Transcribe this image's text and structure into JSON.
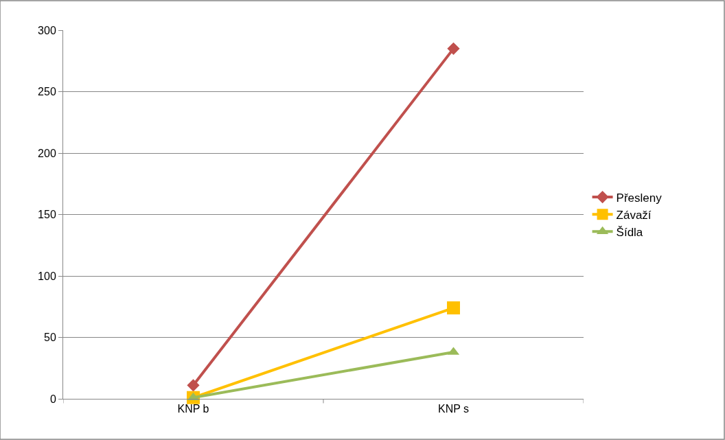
{
  "chart_data": {
    "type": "line",
    "categories": [
      "KNP b",
      "KNP s"
    ],
    "series": [
      {
        "name": "Přesleny",
        "color": "#c0504d",
        "values": [
          11,
          285
        ],
        "marker": "diamond"
      },
      {
        "name": "Závaží",
        "color": "#ffc000",
        "values": [
          1,
          74
        ],
        "marker": "square"
      },
      {
        "name": "Šídla",
        "color": "#9bbb59",
        "values": [
          1,
          38
        ],
        "marker": "triangle"
      }
    ],
    "ylim": [
      0,
      300
    ],
    "yticks": [
      0,
      50,
      100,
      150,
      200,
      250,
      300
    ],
    "grid": "y",
    "legend": "right"
  }
}
